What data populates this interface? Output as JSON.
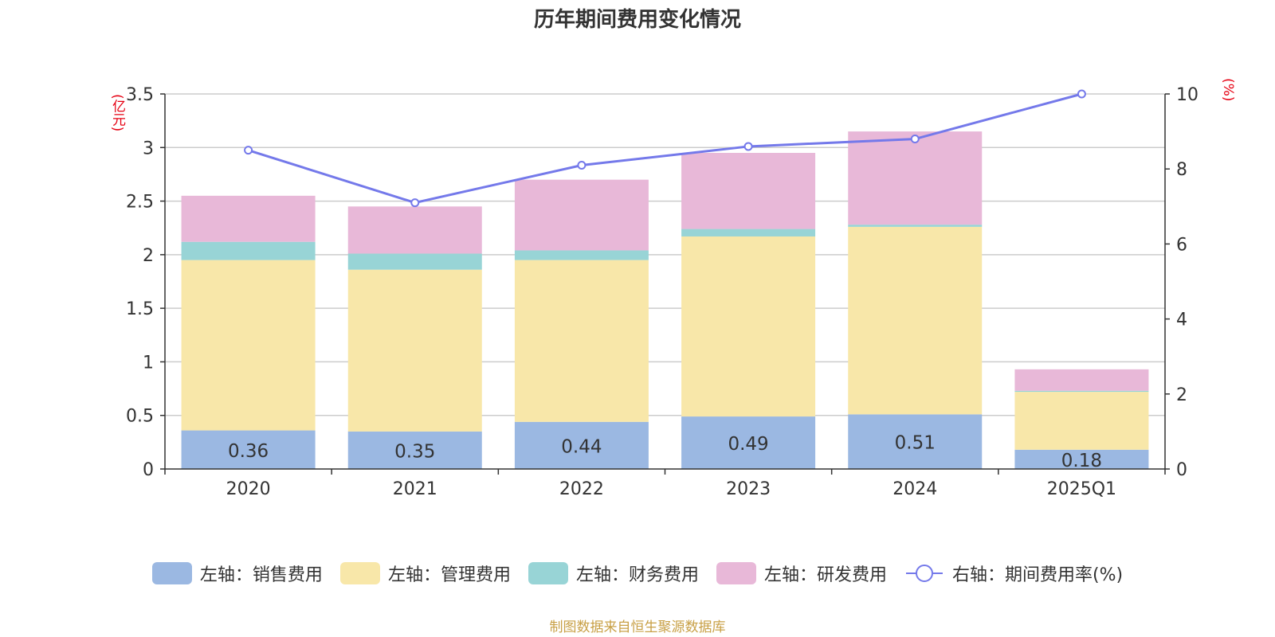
{
  "chart_data": {
    "type": "bar",
    "title": "历年期间费用变化情况",
    "categories": [
      "2020",
      "2021",
      "2022",
      "2023",
      "2024",
      "2025Q1"
    ],
    "left_axis": {
      "unit_label": "(亿元)",
      "ylim": [
        0,
        3.5
      ],
      "ticks": [
        "0",
        "0.5",
        "1",
        "1.5",
        "2",
        "2.5",
        "3",
        "3.5"
      ]
    },
    "right_axis": {
      "unit_label": "(%)",
      "ylim": [
        0,
        10
      ],
      "ticks": [
        "0",
        "2",
        "4",
        "6",
        "8",
        "10"
      ]
    },
    "series": [
      {
        "name": "左轴：销售费用",
        "type": "bar",
        "stack": "left",
        "color": "#9bb8e2",
        "values": [
          0.36,
          0.35,
          0.44,
          0.49,
          0.51,
          0.18
        ],
        "data_labels": [
          "0.36",
          "0.35",
          "0.44",
          "0.49",
          "0.51",
          "0.18"
        ]
      },
      {
        "name": "左轴：管理费用",
        "type": "bar",
        "stack": "left",
        "color": "#f8e7a9",
        "values": [
          1.59,
          1.51,
          1.51,
          1.68,
          1.75,
          0.54
        ]
      },
      {
        "name": "左轴：财务费用",
        "type": "bar",
        "stack": "left",
        "color": "#98d4d6",
        "values": [
          0.17,
          0.15,
          0.09,
          0.07,
          0.02,
          0.01
        ]
      },
      {
        "name": "左轴：研发费用",
        "type": "bar",
        "stack": "left",
        "color": "#e8b8d8",
        "values": [
          0.43,
          0.44,
          0.66,
          0.71,
          0.87,
          0.2
        ]
      },
      {
        "name": "右轴：期间费用率(%)",
        "type": "line",
        "axis": "right",
        "color": "#7479ea",
        "values": [
          8.5,
          7.1,
          8.1,
          8.6,
          8.8,
          10.0
        ]
      }
    ],
    "grid": true,
    "legend_position": "bottom",
    "source": "制图数据来自恒生聚源数据库"
  }
}
